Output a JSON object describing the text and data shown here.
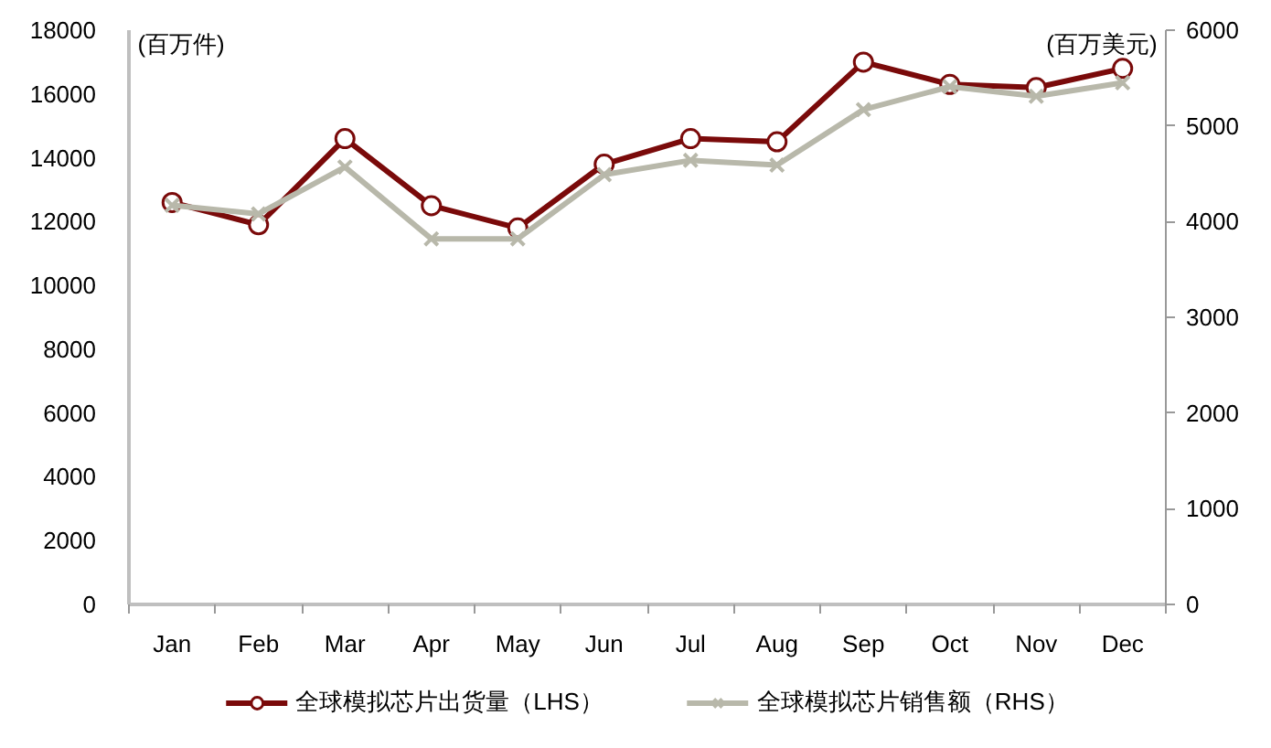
{
  "chart_data": {
    "type": "line",
    "categories": [
      "Jan",
      "Feb",
      "Mar",
      "Apr",
      "May",
      "Jun",
      "Jul",
      "Aug",
      "Sep",
      "Oct",
      "Nov",
      "Dec"
    ],
    "series": [
      {
        "name": "全球模拟芯片出货量（LHS）",
        "color": "#7a0a0a",
        "marker": "circle",
        "values": [
          12600,
          11900,
          14600,
          12500,
          11800,
          13800,
          14600,
          14500,
          17000,
          16300,
          16200,
          16800
        ]
      },
      {
        "name": "全球模拟芯片销售额（RHS）",
        "color": "#b8b8aa",
        "marker": "cross",
        "axis": "y2",
        "values": [
          4170,
          4080,
          4570,
          3820,
          3820,
          4490,
          4640,
          4590,
          5170,
          5410,
          5310,
          5450
        ]
      }
    ],
    "ylabel": "(百万件)",
    "y2label": "(百万美元)",
    "ylim": [
      0,
      18000
    ],
    "yticks": [
      0,
      2000,
      4000,
      6000,
      8000,
      10000,
      12000,
      14000,
      16000,
      18000
    ],
    "y2lim": [
      0,
      6000
    ],
    "y2ticks": [
      0,
      1000,
      2000,
      3000,
      4000,
      5000,
      6000
    ],
    "legend": "bottom",
    "line_style": "solid"
  }
}
